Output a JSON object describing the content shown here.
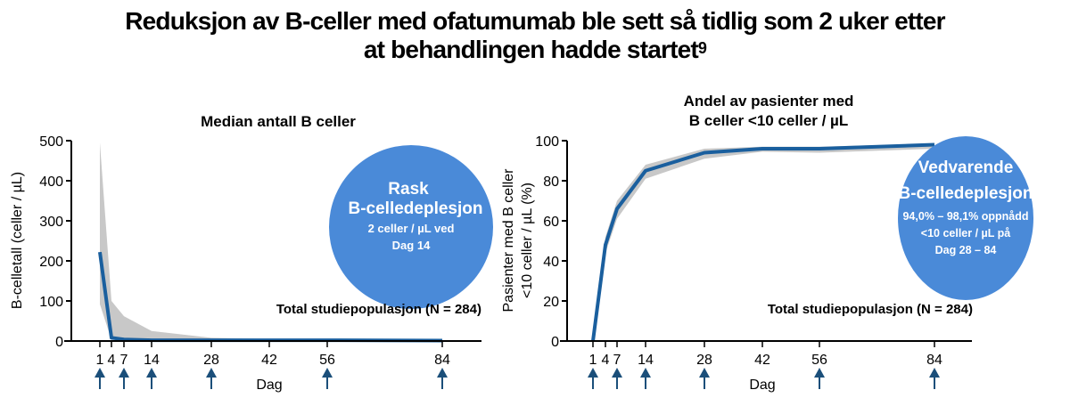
{
  "header": {
    "title_line1": "Reduksjon av B-celler med ofatumumab ble sett så tidlig som 2 uker etter",
    "title_line2": "at behandlingen hadde startet",
    "title_superscript": "9"
  },
  "colors": {
    "line": "#1a5f9e",
    "band": "#c8c8c8",
    "bubble": "#4a8ad8",
    "arrow": "#1b4f7a",
    "axis": "#000000"
  },
  "chart_data": [
    {
      "type": "line",
      "title": "Median antall B celler",
      "xlabel": "Dag",
      "ylabel": "B-celletall (celler / µL)",
      "x": [
        1,
        4,
        7,
        14,
        28,
        42,
        56,
        84
      ],
      "x_tick_labels": [
        "1",
        "4",
        "7",
        "14",
        "28",
        "42",
        "56",
        "84"
      ],
      "dosing_arrow_days": [
        1,
        7,
        14,
        28,
        56,
        84
      ],
      "ylim": [
        0,
        500
      ],
      "y_ticks": [
        0,
        100,
        200,
        300,
        400,
        500
      ],
      "series": [
        {
          "name": "Median",
          "values": [
            222,
            8,
            4,
            2,
            2,
            2,
            2,
            1
          ]
        },
        {
          "name": "Upper bound",
          "values": [
            495,
            100,
            62,
            25,
            8,
            5,
            4,
            2
          ]
        },
        {
          "name": "Lower bound",
          "values": [
            92,
            3,
            2,
            1,
            1,
            1,
            1,
            0
          ]
        }
      ],
      "annotation_population": "Total studiepopulasjon (N = 284)",
      "bubble": {
        "heading1": "Rask",
        "heading2": "B-celledeplesjon",
        "line1": "2 celler / µL ved",
        "line2": "Dag 14"
      },
      "grid": false
    },
    {
      "type": "line",
      "title_line1": "Andel av pasienter med",
      "title_line2": "B celler <10 celler / µL",
      "xlabel": "Dag",
      "ylabel_line1": "Pasienter med B celler",
      "ylabel_line2": "<10 celler / µL (%)",
      "x": [
        1,
        4,
        7,
        14,
        28,
        42,
        56,
        84
      ],
      "x_tick_labels": [
        "1",
        "4",
        "7",
        "14",
        "28",
        "42",
        "56",
        "84"
      ],
      "dosing_arrow_days": [
        1,
        7,
        14,
        28,
        56,
        84
      ],
      "ylim": [
        0,
        100
      ],
      "y_ticks": [
        0,
        20,
        40,
        60,
        80,
        100
      ],
      "series": [
        {
          "name": "Andel",
          "values": [
            0,
            48,
            66,
            85,
            94,
            96,
            96,
            98
          ]
        },
        {
          "name": "Upper bound",
          "values": [
            0,
            52,
            70,
            88,
            96,
            97,
            97,
            98.5
          ]
        },
        {
          "name": "Lower bound",
          "values": [
            0,
            44,
            61,
            81,
            91,
            94.5,
            94,
            96
          ]
        }
      ],
      "annotation_population": "Total studiepopulasjon (N = 284)",
      "bubble": {
        "heading1": "Vedvarende",
        "heading2": "B-celledeplesjon",
        "line1": "94,0% – 98,1% oppnådd",
        "line2": "<10 celler / µL på",
        "line3": "Dag 28 – 84"
      },
      "grid": false
    }
  ]
}
